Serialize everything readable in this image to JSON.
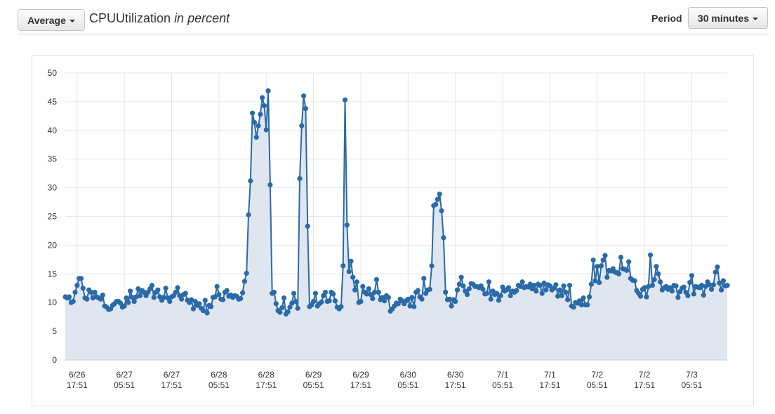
{
  "toolbar": {
    "statistic_label": "Average",
    "metric_name": "CPUUtilization",
    "metric_unit": "in percent",
    "period_label": "Period",
    "period_value": "30 minutes"
  },
  "colors": {
    "line": "#2a6aa8",
    "area": "#dfe6f0",
    "grid": "#e6e6e6"
  },
  "chart_data": {
    "type": "line",
    "title": "",
    "xlabel": "",
    "ylabel": "",
    "ylim": [
      0,
      50
    ],
    "yticks": [
      0,
      5,
      10,
      15,
      20,
      25,
      30,
      35,
      40,
      45,
      50
    ],
    "xticks": [
      {
        "date": "6/26",
        "time": "17:51",
        "index": 6
      },
      {
        "date": "6/27",
        "time": "05:51",
        "index": 30
      },
      {
        "date": "6/27",
        "time": "17:51",
        "index": 54
      },
      {
        "date": "6/28",
        "time": "05:51",
        "index": 78
      },
      {
        "date": "6/28",
        "time": "17:51",
        "index": 102
      },
      {
        "date": "6/29",
        "time": "05:51",
        "index": 126
      },
      {
        "date": "6/29",
        "time": "17:51",
        "index": 150
      },
      {
        "date": "6/30",
        "time": "05:51",
        "index": 174
      },
      {
        "date": "6/30",
        "time": "17:51",
        "index": 198
      },
      {
        "date": "7/1",
        "time": "05:51",
        "index": 222
      },
      {
        "date": "7/1",
        "time": "17:51",
        "index": 246
      },
      {
        "date": "7/2",
        "time": "05:51",
        "index": 270
      },
      {
        "date": "7/2",
        "time": "17:51",
        "index": 294
      },
      {
        "date": "7/3",
        "time": "05:51",
        "index": 318
      }
    ],
    "grid": true,
    "interval_minutes": 30,
    "series": [
      {
        "values": [
          11,
          10.8,
          11,
          10,
          10.2,
          11.8,
          13,
          14.2,
          14.2,
          12.5,
          10.8,
          10.6,
          12.2,
          11.8,
          10.8,
          11.8,
          11,
          10.8,
          10.6,
          11.3,
          9.4,
          9.2,
          8.8,
          8.9,
          9.5,
          9.8,
          10.2,
          10.2,
          9.9,
          9.2,
          9.4,
          10.8,
          10,
          12,
          10.9,
          10.2,
          11,
          12.4,
          11.2,
          12.1,
          11.8,
          11.2,
          11.8,
          12.4,
          13,
          10.9,
          11.8,
          12.2,
          11,
          10.4,
          10.9,
          12.5,
          10.8,
          10.2,
          11,
          11.2,
          11.8,
          12.6,
          11.2,
          10.6,
          11.4,
          11.6,
          10.4,
          10,
          10.5,
          8.9,
          10.2,
          9.5,
          9.8,
          9,
          8.6,
          10.4,
          8.2,
          9.5,
          9.3,
          10.9,
          11,
          12.8,
          11.4,
          10.6,
          10.5,
          11.8,
          12.1,
          11.1,
          11.3,
          10.9,
          11.2,
          11.1,
          10.6,
          10.7,
          11.7,
          13.7,
          15.1,
          25.3,
          31.2,
          43,
          41.4,
          38.8,
          40.8,
          42.8,
          45.7,
          44.3,
          40.1,
          46.9,
          30.5,
          11.6,
          11.8,
          9.8,
          8.6,
          8.3,
          9.1,
          10.8,
          8,
          8.4,
          9.2,
          9.9,
          11.6,
          10.2,
          9,
          31.6,
          40.8,
          46,
          43.8,
          23.3,
          9.3,
          9.6,
          10.2,
          11.6,
          9.4,
          9.8,
          10.1,
          11.2,
          11.8,
          10.2,
          10.3,
          11.8,
          11.5,
          10.3,
          9.2,
          8.9,
          9.3,
          16.4,
          45.3,
          23.5,
          15.4,
          17.2,
          14.4,
          12.2,
          13.6,
          10,
          10.2,
          12.8,
          11.8,
          11.5,
          12.4,
          11.4,
          10.7,
          11.8,
          14,
          11.8,
          10.5,
          10.9,
          10.3,
          11.2,
          10.9,
          8.5,
          8.9,
          9.4,
          9.9,
          9.8,
          10.6,
          10.3,
          9.8,
          10.3,
          10.6,
          9.4,
          10.9,
          9.3,
          11.8,
          12.1,
          11,
          10.6,
          14.2,
          11.6,
          12.2,
          12.3,
          16.4,
          26.9,
          27.1,
          28,
          28.9,
          26,
          21.3,
          11.8,
          10.5,
          10.6,
          9.4,
          10.5,
          10.2,
          12.2,
          13.2,
          14.4,
          12.9,
          12,
          11.4,
          12.4,
          13.3,
          13.2,
          12.8,
          12.8,
          12.6,
          12.9,
          12.3,
          11.5,
          11.6,
          13.6,
          10.6,
          12,
          11.4,
          11.6,
          10.4,
          11.2,
          12.7,
          12,
          12.2,
          12.6,
          11.2,
          12,
          11.8,
          12.1,
          13,
          12.8,
          13.6,
          12.6,
          12.8,
          12.7,
          13.2,
          12.4,
          13,
          12,
          13.2,
          13,
          11.6,
          13.4,
          12.2,
          13.1,
          12.9,
          12.2,
          12.5,
          13.1,
          11.1,
          12.2,
          11.2,
          12.9,
          11.8,
          10.5,
          13,
          9.4,
          9.2,
          10,
          9.9,
          10.3,
          9.6,
          10.8,
          9.6,
          9.6,
          11,
          13.2,
          17.4,
          13.8,
          16.3,
          13.5,
          16.4,
          17.4,
          18.2,
          14.4,
          15.6,
          15.5,
          15.9,
          15.3,
          15.2,
          15,
          17.9,
          15.9,
          15.8,
          15.6,
          17.1,
          14.2,
          13.9,
          13.8,
          12.1,
          11.6,
          11.1,
          12.3,
          12.6,
          11,
          12.8,
          18.3,
          13,
          14,
          16.3,
          15,
          13.6,
          12.2,
          12.6,
          12.8,
          12.3,
          12.6,
          12,
          13,
          12.9,
          10.9,
          11.9,
          12.5,
          12.7,
          11.8,
          11.2,
          13.5,
          14.7,
          11.5,
          12.8,
          12.7,
          12.6,
          13,
          11.3,
          12.8,
          13.6,
          13.1,
          12.3,
          13.1,
          15.3,
          16.2,
          13.4,
          12.2,
          13.8,
          12.9,
          13
        ]
      }
    ]
  }
}
